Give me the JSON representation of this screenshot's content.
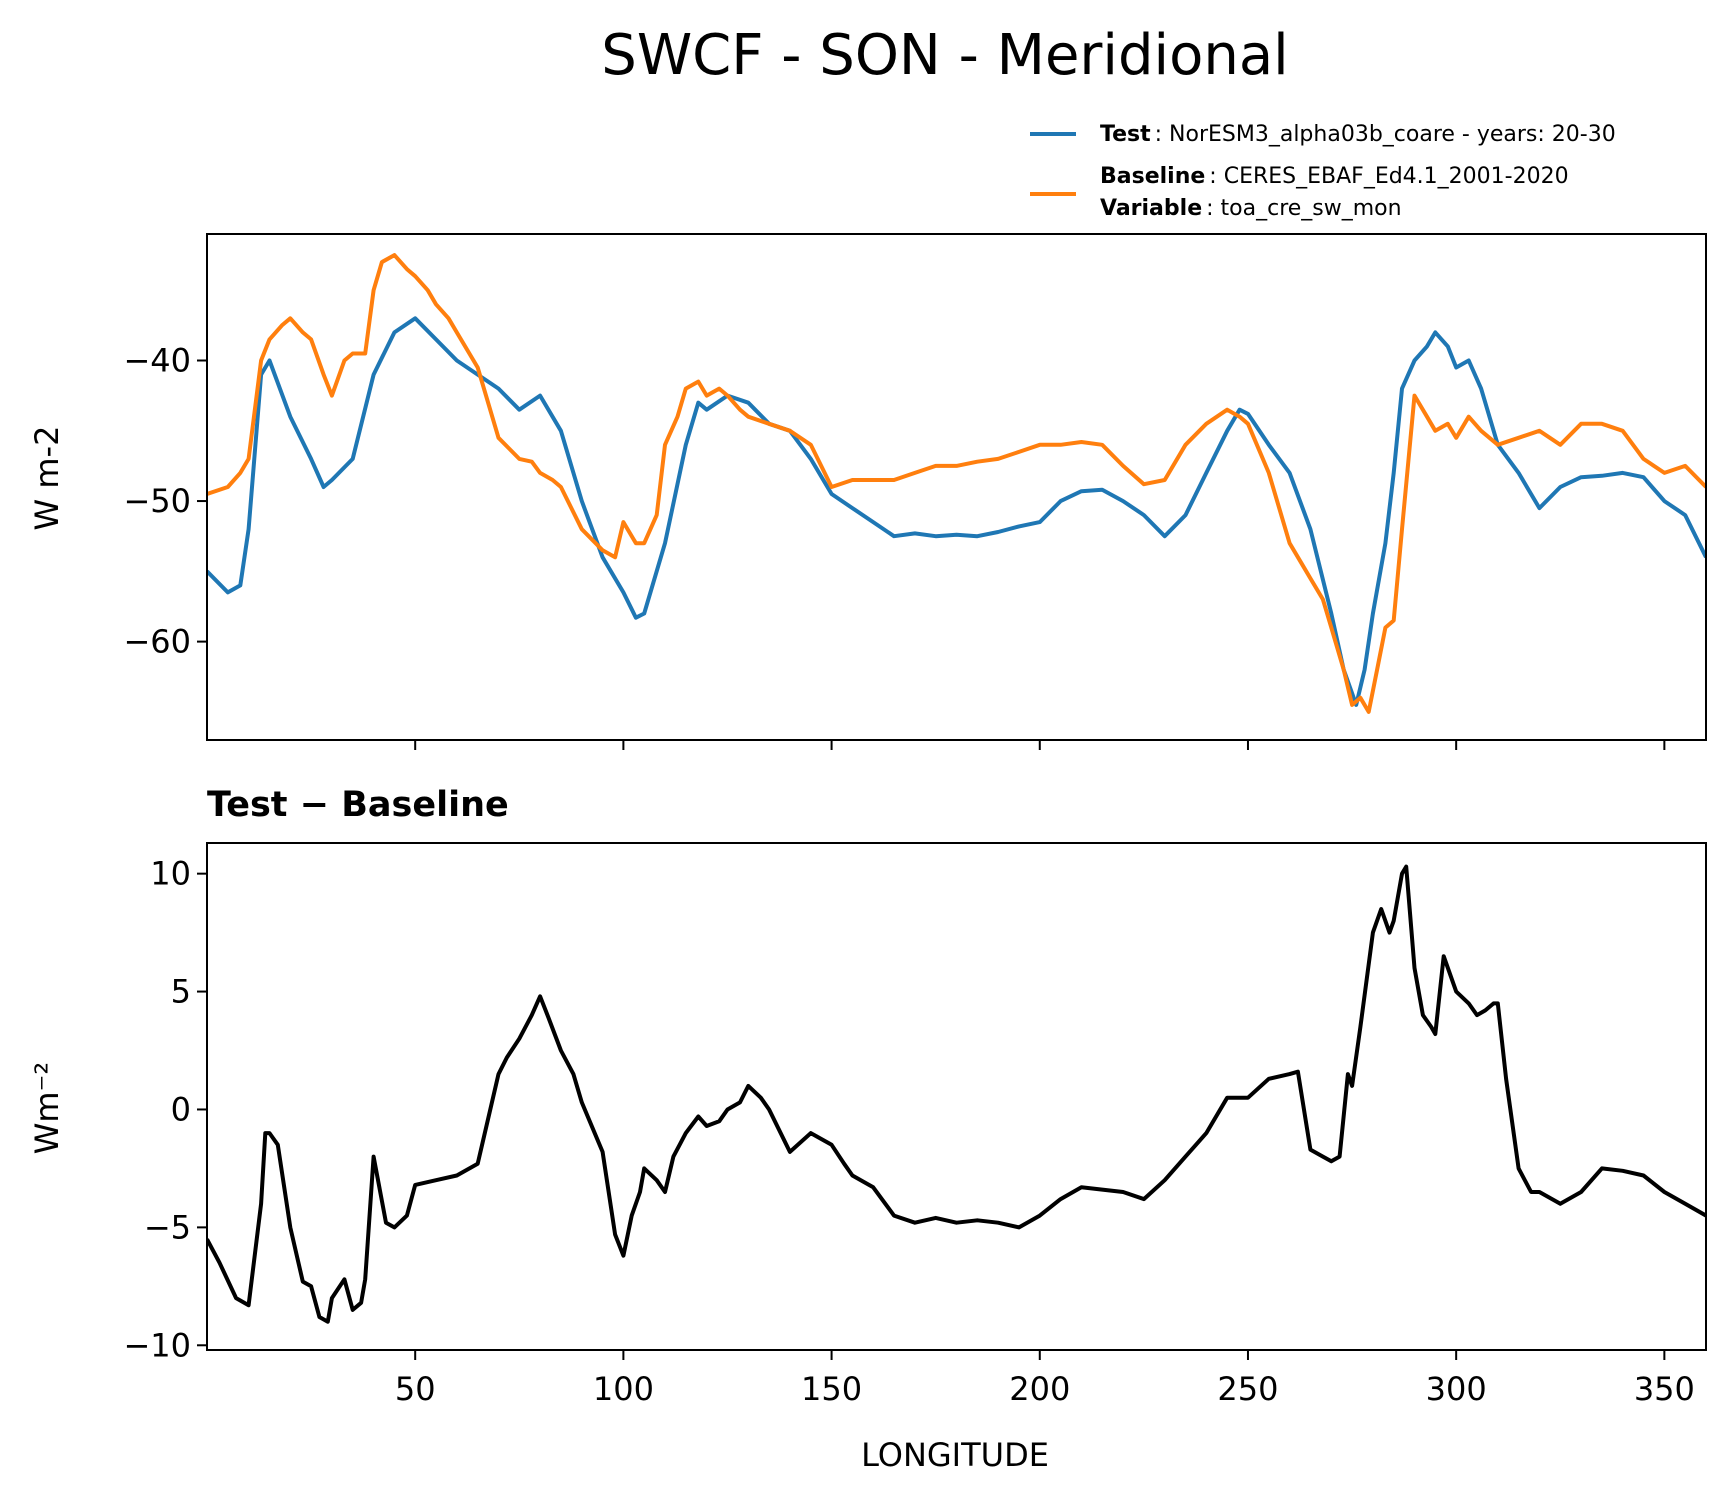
{
  "title": "SWCF - SON - Meridional",
  "legend": {
    "test_key": "Test",
    "test_value": ": NorESM3_alpha03b_coare - years: 20-30",
    "baseline_key": "Baseline",
    "baseline_value": ": CERES_EBAF_Ed4.1_2001-2020",
    "variable_key": "Variable",
    "variable_value": ": toa_cre_sw_mon"
  },
  "colors": {
    "test": "#1f77b4",
    "baseline": "#ff7f0e",
    "diff": "#000000"
  },
  "chart_data": [
    {
      "type": "line",
      "title": "",
      "xlabel": "",
      "ylabel": "W m-2",
      "xlim": [
        0,
        360
      ],
      "ylim": [
        -67,
        -31
      ],
      "yticks": [
        -40,
        -50,
        -60
      ],
      "ytick_labels": [
        "−40",
        "−50",
        "−60"
      ],
      "xticks": [
        50,
        100,
        150,
        200,
        250,
        300,
        350
      ],
      "legend_position": "above-right",
      "series": [
        {
          "name": "Test",
          "x": [
            0,
            5,
            8,
            10,
            13,
            15,
            20,
            25,
            28,
            30,
            35,
            40,
            45,
            50,
            55,
            60,
            65,
            70,
            75,
            80,
            85,
            90,
            95,
            100,
            103,
            105,
            110,
            115,
            118,
            120,
            125,
            130,
            135,
            140,
            145,
            150,
            155,
            160,
            165,
            170,
            175,
            180,
            185,
            190,
            195,
            200,
            205,
            210,
            215,
            220,
            225,
            230,
            235,
            240,
            245,
            248,
            250,
            255,
            260,
            265,
            270,
            273,
            276,
            278,
            280,
            283,
            285,
            287,
            290,
            293,
            295,
            298,
            300,
            303,
            306,
            310,
            315,
            320,
            325,
            330,
            335,
            340,
            345,
            350,
            355,
            360
          ],
          "values": [
            -55,
            -56.5,
            -56,
            -52,
            -41,
            -40,
            -44,
            -47,
            -49,
            -48.5,
            -47,
            -41,
            -38,
            -37,
            -38.5,
            -40,
            -41,
            -42,
            -43.5,
            -42.5,
            -45,
            -50,
            -54,
            -56.5,
            -58.3,
            -58,
            -53,
            -46,
            -43,
            -43.5,
            -42.5,
            -43,
            -44.5,
            -45,
            -47,
            -49.5,
            -50.5,
            -51.5,
            -52.5,
            -52.3,
            -52.5,
            -52.4,
            -52.5,
            -52.2,
            -51.8,
            -51.5,
            -50,
            -49.3,
            -49.2,
            -50,
            -51,
            -52.5,
            -51,
            -48,
            -45,
            -43.5,
            -43.8,
            -46,
            -48,
            -52,
            -58,
            -62,
            -64.5,
            -62,
            -58,
            -53,
            -48,
            -42,
            -40,
            -39,
            -38,
            -39,
            -40.5,
            -40,
            -42,
            -46,
            -48,
            -50.5,
            -49,
            -48.3,
            -48.2,
            -48,
            -48.3,
            -50,
            -51,
            -54
          ]
        },
        {
          "name": "Baseline",
          "x": [
            0,
            5,
            8,
            10,
            13,
            15,
            18,
            20,
            23,
            25,
            28,
            30,
            33,
            35,
            38,
            40,
            42,
            45,
            48,
            50,
            53,
            55,
            58,
            60,
            65,
            70,
            75,
            78,
            80,
            83,
            85,
            90,
            95,
            98,
            100,
            103,
            105,
            108,
            110,
            113,
            115,
            118,
            120,
            123,
            125,
            128,
            130,
            135,
            140,
            145,
            150,
            155,
            160,
            165,
            170,
            175,
            180,
            185,
            190,
            195,
            200,
            205,
            210,
            215,
            220,
            225,
            230,
            235,
            240,
            245,
            248,
            250,
            255,
            260,
            263,
            265,
            268,
            270,
            273,
            275,
            277,
            279,
            281,
            283,
            285,
            287,
            290,
            293,
            295,
            298,
            300,
            303,
            306,
            310,
            315,
            320,
            325,
            330,
            335,
            340,
            345,
            350,
            355,
            360
          ],
          "values": [
            -49.5,
            -49,
            -48,
            -47,
            -40,
            -38.5,
            -37.5,
            -37,
            -38,
            -38.5,
            -41,
            -42.5,
            -40,
            -39.5,
            -39.5,
            -35,
            -33,
            -32.5,
            -33.5,
            -34,
            -35,
            -36,
            -37,
            -38,
            -40.5,
            -45.5,
            -47,
            -47.2,
            -48,
            -48.5,
            -49,
            -52,
            -53.5,
            -54,
            -51.5,
            -53,
            -53,
            -51,
            -46,
            -44,
            -42,
            -41.5,
            -42.5,
            -42,
            -42.5,
            -43.5,
            -44,
            -44.5,
            -45,
            -46,
            -49,
            -48.5,
            -48.5,
            -48.5,
            -48,
            -47.5,
            -47.5,
            -47.2,
            -47,
            -46.5,
            -46,
            -46,
            -45.8,
            -46,
            -47.5,
            -48.8,
            -48.5,
            -46,
            -44.5,
            -43.5,
            -44,
            -44.5,
            -48,
            -53,
            -54.5,
            -55.5,
            -57,
            -59,
            -62,
            -64.5,
            -64,
            -65,
            -62,
            -59,
            -58.5,
            -52,
            -42.5,
            -44,
            -45,
            -44.5,
            -45.5,
            -44,
            -45,
            -46,
            -45.5,
            -45,
            -46,
            -44.5,
            -44.5,
            -45,
            -47,
            -48,
            -47.5,
            -49
          ]
        }
      ]
    },
    {
      "type": "line",
      "title": "Test − Baseline",
      "xlabel": "LONGITUDE",
      "ylabel": "Wm⁻²",
      "xlim": [
        0,
        360
      ],
      "ylim": [
        -10.2,
        11.3
      ],
      "yticks": [
        10,
        5,
        0,
        -5,
        -10
      ],
      "ytick_labels": [
        "10",
        "5",
        "0",
        "−5",
        "−10"
      ],
      "xticks": [
        50,
        100,
        150,
        200,
        250,
        300,
        350
      ],
      "xtick_labels": [
        "50",
        "100",
        "150",
        "200",
        "250",
        "300",
        "350"
      ],
      "series": [
        {
          "name": "Test − Baseline",
          "x": [
            0,
            3,
            7,
            10,
            13,
            14,
            15,
            17,
            20,
            23,
            25,
            27,
            29,
            30,
            33,
            35,
            37,
            38,
            40,
            43,
            45,
            48,
            50,
            55,
            60,
            65,
            70,
            72,
            75,
            78,
            80,
            82,
            85,
            88,
            90,
            95,
            98,
            100,
            102,
            104,
            105,
            108,
            110,
            112,
            115,
            118,
            120,
            123,
            125,
            128,
            130,
            133,
            135,
            140,
            145,
            150,
            153,
            155,
            160,
            165,
            170,
            175,
            180,
            185,
            190,
            195,
            200,
            205,
            210,
            215,
            220,
            225,
            230,
            235,
            240,
            245,
            250,
            255,
            260,
            262,
            265,
            268,
            270,
            272,
            274,
            275,
            277,
            280,
            282,
            284,
            285,
            287,
            288,
            290,
            292,
            294,
            295,
            297,
            300,
            303,
            305,
            307,
            309,
            310,
            312,
            315,
            318,
            320,
            325,
            330,
            335,
            340,
            345,
            350,
            355,
            360
          ],
          "values": [
            -5.5,
            -6.5,
            -8,
            -8.3,
            -4,
            -1,
            -1,
            -1.5,
            -5,
            -7.3,
            -7.5,
            -8.8,
            -9,
            -8,
            -7.2,
            -8.5,
            -8.2,
            -7.2,
            -2,
            -4.8,
            -5,
            -4.5,
            -3.2,
            -3,
            -2.8,
            -2.3,
            1.5,
            2.2,
            3,
            4,
            4.8,
            3.9,
            2.5,
            1.5,
            0.3,
            -1.8,
            -5.3,
            -6.2,
            -4.5,
            -3.5,
            -2.5,
            -3,
            -3.5,
            -2,
            -1,
            -0.3,
            -0.7,
            -0.5,
            0,
            0.3,
            1,
            0.5,
            0,
            -1.8,
            -1,
            -1.5,
            -2.3,
            -2.8,
            -3.3,
            -4.5,
            -4.8,
            -4.6,
            -4.8,
            -4.7,
            -4.8,
            -5,
            -4.5,
            -3.8,
            -3.3,
            -3.4,
            -3.5,
            -3.8,
            -3,
            -2,
            -1,
            0.5,
            0.5,
            1.3,
            1.5,
            1.6,
            -1.7,
            -2,
            -2.2,
            -2,
            1.5,
            1,
            3.5,
            7.5,
            8.5,
            7.5,
            8,
            10,
            10.3,
            6,
            4,
            3.5,
            3.2,
            6.5,
            5,
            4.5,
            4,
            4.2,
            4.5,
            4.5,
            1.3,
            -2.5,
            -3.5,
            -3.5,
            -4,
            -3.5,
            -2.5,
            -2.6,
            -2.8,
            -3.5,
            -4,
            -4.5
          ]
        }
      ]
    }
  ]
}
